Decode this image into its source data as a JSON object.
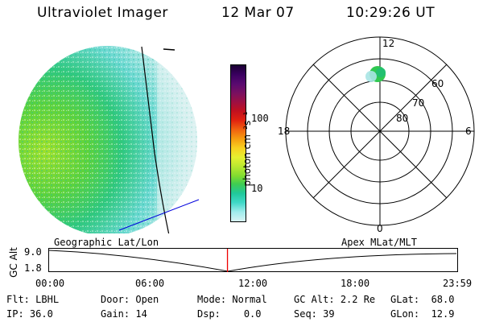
{
  "header": {
    "instrument": "Ultraviolet Imager",
    "date": "12 Mar 07",
    "time": "10:29:26 UT"
  },
  "colorbar": {
    "unit_label": "photon cm⁻²s⁻¹",
    "ticks": [
      "100",
      "10"
    ],
    "colors": [
      "#1a0033",
      "#3a0060",
      "#5a0a70",
      "#7a1060",
      "#a01040",
      "#c01020",
      "#e02010",
      "#f06010",
      "#f59b10",
      "#f8d020",
      "#e6f030",
      "#b8e830",
      "#80dc30",
      "#40cc50",
      "#20c89a",
      "#40d8c8",
      "#a0ecec",
      "#d8f4f4"
    ]
  },
  "polar": {
    "mlt_labels": {
      "top": "12",
      "bottom": "0",
      "left": "18",
      "right": "6"
    },
    "lat_labels": [
      "60",
      "70",
      "80"
    ]
  },
  "timeline": {
    "ylabel": "GC Alt",
    "y_ticks": [
      "9.0",
      "1.8"
    ],
    "left_caption": "Geographic Lat/Lon",
    "right_caption": "Apex MLat/MLT",
    "x_ticks": [
      "00:00",
      "06:00",
      "12:00",
      "18:00",
      "23:59"
    ],
    "current_marker_fraction": 0.437
  },
  "status": {
    "flt_label": "Flt:",
    "flt_value": "LBHL",
    "ip_label": "IP:",
    "ip_value": "36.0",
    "door_label": "Door:",
    "door_value": "Open",
    "gain_label": "Gain:",
    "gain_value": "14",
    "mode_label": "Mode:",
    "mode_value": "Normal",
    "dsp_label": "Dsp:",
    "dsp_value": "0.0",
    "gcalt_label": "GC Alt:",
    "gcalt_value": "2.2 Re",
    "seq_label": "Seq:",
    "seq_value": "39",
    "glat_label": "GLat:",
    "glat_value": "68.0",
    "glon_label": "GLon:",
    "glon_value": "12.9"
  }
}
